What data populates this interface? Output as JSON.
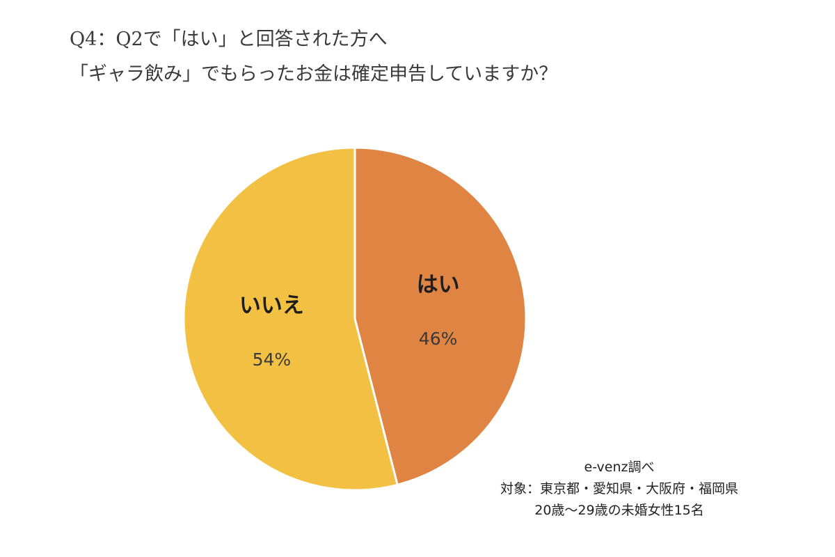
{
  "header": {
    "title_line1": "Q4：Q2で「はい」と回答された方へ",
    "title_line2": "「ギャラ飲み」でもらったお金は確定申告していますか？"
  },
  "chart_data": {
    "type": "pie",
    "slices": [
      {
        "label": "はい",
        "value": 46,
        "value_label": "46%",
        "color": "#e08443"
      },
      {
        "label": "いいえ",
        "value": 54,
        "value_label": "54%",
        "color": "#f2c143"
      }
    ],
    "start": "top, clockwise"
  },
  "footer": {
    "source": "e-venz調べ",
    "target": "対象：東京都・愛知県・大阪府・福岡県",
    "sample": "20歳〜29歳の未婚女性15名"
  }
}
